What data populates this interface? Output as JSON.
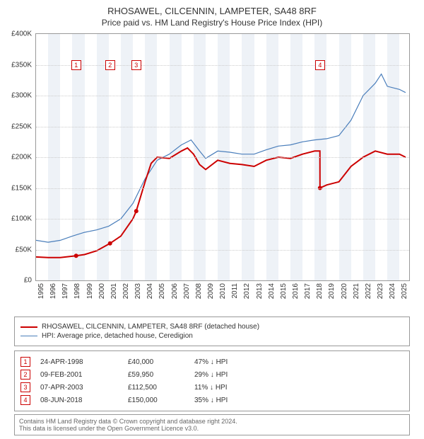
{
  "title": {
    "line1": "RHOSAWEL, CILCENNIN, LAMPETER, SA48 8RF",
    "line2": "Price paid vs. HM Land Registry's House Price Index (HPI)"
  },
  "chart": {
    "type": "line",
    "xlim": [
      1995,
      2025.8
    ],
    "ylim": [
      0,
      400000
    ],
    "ytick_step": 50000,
    "ytick_labels": [
      "£0",
      "£50K",
      "£100K",
      "£150K",
      "£200K",
      "£250K",
      "£300K",
      "£350K",
      "£400K"
    ],
    "xtick_step": 1,
    "xtick_labels": [
      "1995",
      "1996",
      "1997",
      "1998",
      "1999",
      "2000",
      "2001",
      "2002",
      "2003",
      "2004",
      "2005",
      "2006",
      "2007",
      "2008",
      "2009",
      "2010",
      "2011",
      "2012",
      "2013",
      "2014",
      "2015",
      "2016",
      "2017",
      "2018",
      "2019",
      "2020",
      "2021",
      "2022",
      "2023",
      "2024",
      "2025"
    ],
    "background_color": "#ffffff",
    "grid_color": "#cccccc",
    "shaded_years": [
      1996,
      1998,
      2000,
      2002,
      2004,
      2006,
      2008,
      2010,
      2012,
      2014,
      2016,
      2018,
      2020,
      2022,
      2024
    ],
    "shade_color": "#eef2f7",
    "series": {
      "property": {
        "color": "#cc0000",
        "line_width": 2,
        "points": [
          [
            1995.0,
            38000
          ],
          [
            1996.0,
            37000
          ],
          [
            1997.0,
            37000
          ],
          [
            1998.3,
            40000
          ],
          [
            1999.0,
            42000
          ],
          [
            2000.0,
            48000
          ],
          [
            2001.1,
            59950
          ],
          [
            2002.0,
            72000
          ],
          [
            2003.0,
            100000
          ],
          [
            2003.27,
            112500
          ],
          [
            2004.0,
            160000
          ],
          [
            2004.5,
            190000
          ],
          [
            2005.0,
            200000
          ],
          [
            2006.0,
            198000
          ],
          [
            2007.0,
            210000
          ],
          [
            2007.5,
            215000
          ],
          [
            2008.0,
            205000
          ],
          [
            2008.5,
            188000
          ],
          [
            2009.0,
            180000
          ],
          [
            2010.0,
            195000
          ],
          [
            2011.0,
            190000
          ],
          [
            2012.0,
            188000
          ],
          [
            2013.0,
            185000
          ],
          [
            2014.0,
            195000
          ],
          [
            2015.0,
            200000
          ],
          [
            2016.0,
            198000
          ],
          [
            2017.0,
            205000
          ],
          [
            2018.0,
            210000
          ],
          [
            2018.43,
            210000
          ],
          [
            2018.44,
            150000
          ],
          [
            2019.0,
            155000
          ],
          [
            2020.0,
            160000
          ],
          [
            2021.0,
            185000
          ],
          [
            2022.0,
            200000
          ],
          [
            2023.0,
            210000
          ],
          [
            2024.0,
            205000
          ],
          [
            2025.0,
            205000
          ],
          [
            2025.5,
            200000
          ]
        ]
      },
      "hpi": {
        "color": "#4a7ebb",
        "line_width": 1.2,
        "points": [
          [
            1995.0,
            65000
          ],
          [
            1996.0,
            62000
          ],
          [
            1997.0,
            65000
          ],
          [
            1998.0,
            72000
          ],
          [
            1999.0,
            78000
          ],
          [
            2000.0,
            82000
          ],
          [
            2001.0,
            88000
          ],
          [
            2002.0,
            100000
          ],
          [
            2003.0,
            125000
          ],
          [
            2004.0,
            165000
          ],
          [
            2005.0,
            195000
          ],
          [
            2006.0,
            205000
          ],
          [
            2007.0,
            220000
          ],
          [
            2007.8,
            228000
          ],
          [
            2008.5,
            210000
          ],
          [
            2009.0,
            198000
          ],
          [
            2010.0,
            210000
          ],
          [
            2011.0,
            208000
          ],
          [
            2012.0,
            205000
          ],
          [
            2013.0,
            205000
          ],
          [
            2014.0,
            212000
          ],
          [
            2015.0,
            218000
          ],
          [
            2016.0,
            220000
          ],
          [
            2017.0,
            225000
          ],
          [
            2018.0,
            228000
          ],
          [
            2019.0,
            230000
          ],
          [
            2020.0,
            235000
          ],
          [
            2021.0,
            260000
          ],
          [
            2022.0,
            300000
          ],
          [
            2023.0,
            320000
          ],
          [
            2023.5,
            335000
          ],
          [
            2024.0,
            315000
          ],
          [
            2025.0,
            310000
          ],
          [
            2025.5,
            305000
          ]
        ]
      }
    },
    "markers": [
      {
        "n": "1",
        "x": 1998.31,
        "y_label": 350000,
        "y_point": 40000
      },
      {
        "n": "2",
        "x": 2001.11,
        "y_label": 350000,
        "y_point": 59950
      },
      {
        "n": "3",
        "x": 2003.27,
        "y_label": 350000,
        "y_point": 112500
      },
      {
        "n": "4",
        "x": 2018.44,
        "y_label": 350000,
        "y_point": 150000
      }
    ],
    "marker_border_color": "#cc0000",
    "marker_text_color": "#cc0000"
  },
  "legend": {
    "items": [
      {
        "color": "#cc0000",
        "width": 2,
        "label": "RHOSAWEL, CILCENNIN, LAMPETER, SA48 8RF (detached house)"
      },
      {
        "color": "#4a7ebb",
        "width": 1.2,
        "label": "HPI: Average price, detached house, Ceredigion"
      }
    ]
  },
  "transactions": [
    {
      "n": "1",
      "date": "24-APR-1998",
      "price": "£40,000",
      "pct": "47% ↓ HPI"
    },
    {
      "n": "2",
      "date": "09-FEB-2001",
      "price": "£59,950",
      "pct": "29% ↓ HPI"
    },
    {
      "n": "3",
      "date": "07-APR-2003",
      "price": "£112,500",
      "pct": "11% ↓ HPI"
    },
    {
      "n": "4",
      "date": "08-JUN-2018",
      "price": "£150,000",
      "pct": "35% ↓ HPI"
    }
  ],
  "footer": {
    "line1": "Contains HM Land Registry data © Crown copyright and database right 2024.",
    "line2": "This data is licensed under the Open Government Licence v3.0."
  }
}
